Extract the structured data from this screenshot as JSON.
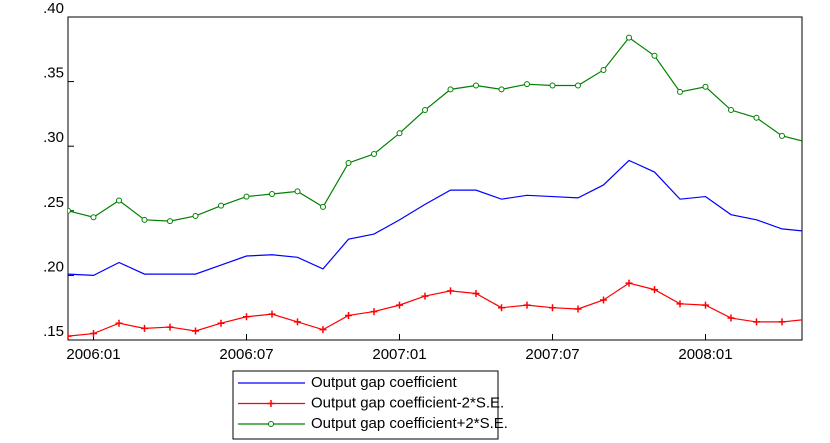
{
  "chart_data": {
    "type": "line",
    "categories": [
      null,
      "2006:01",
      null,
      null,
      null,
      null,
      null,
      "2006:07",
      null,
      null,
      null,
      null,
      null,
      "2007:01",
      null,
      null,
      null,
      null,
      null,
      "2007:07",
      null,
      null,
      null,
      null,
      null,
      "2008:01",
      null,
      null,
      null,
      null,
      null
    ],
    "series": [
      {
        "name": "Output gap coefficient",
        "color": "#0000ff",
        "marker": "none",
        "values": [
          0.201,
          0.2,
          0.21,
          0.201,
          0.201,
          0.201,
          0.208,
          0.215,
          0.216,
          0.214,
          0.205,
          0.228,
          0.232,
          0.243,
          0.255,
          0.266,
          0.266,
          0.259,
          0.262,
          0.261,
          0.26,
          0.27,
          0.289,
          0.28,
          0.259,
          0.261,
          0.247,
          0.243,
          0.236,
          0.234,
          0.237
        ]
      },
      {
        "name": "Output gap coefficient-2*S.E.",
        "color": "#ff0000",
        "marker": "plus",
        "values": [
          0.153,
          0.155,
          0.163,
          0.159,
          0.16,
          0.157,
          0.163,
          0.168,
          0.17,
          0.164,
          0.158,
          0.169,
          0.172,
          0.177,
          0.184,
          0.188,
          0.186,
          0.175,
          0.177,
          0.175,
          0.174,
          0.181,
          0.194,
          0.189,
          0.178,
          0.177,
          0.167,
          0.164,
          0.164,
          0.166,
          0.168
        ]
      },
      {
        "name": "Output gap coefficient+2*S.E.",
        "color": "#008000",
        "marker": "circle",
        "values": [
          0.25,
          0.245,
          0.258,
          0.243,
          0.242,
          0.246,
          0.254,
          0.261,
          0.263,
          0.265,
          0.253,
          0.287,
          0.294,
          0.31,
          0.328,
          0.344,
          0.347,
          0.344,
          0.348,
          0.347,
          0.347,
          0.359,
          0.384,
          0.37,
          0.342,
          0.346,
          0.328,
          0.322,
          0.308,
          0.303,
          0.308
        ]
      }
    ],
    "ylim": [
      0.15,
      0.4
    ],
    "yticks": [
      {
        "value": 0.15,
        "label": ".15"
      },
      {
        "value": 0.2,
        "label": ".20"
      },
      {
        "value": 0.25,
        "label": ".25"
      },
      {
        "value": 0.3,
        "label": ".30"
      },
      {
        "value": 0.35,
        "label": ".35"
      },
      {
        "value": 0.4,
        "label": ".40"
      }
    ],
    "grid": false,
    "legend": "bottom"
  }
}
